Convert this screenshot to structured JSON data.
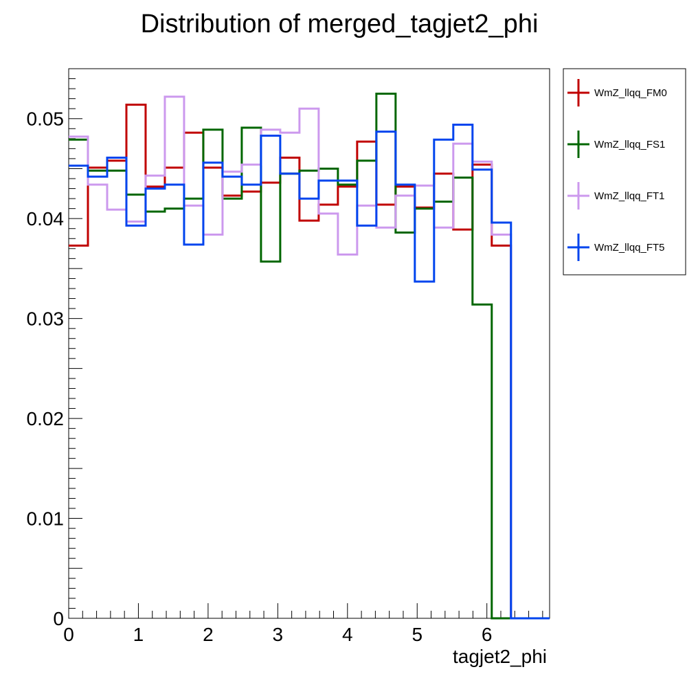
{
  "chart_data": {
    "type": "histogram",
    "title": "Distribution of merged_tagjet2_phi",
    "xlabel": "tagjet2_phi",
    "ylabel": "",
    "xlim": [
      0,
      6.9
    ],
    "ylim": [
      0,
      0.055
    ],
    "x_ticks": [
      "0",
      "1",
      "2",
      "3",
      "4",
      "5",
      "6"
    ],
    "y_ticks": [
      "0",
      "0.01",
      "0.02",
      "0.03",
      "0.04",
      "0.05"
    ],
    "bin_edges": [
      0,
      0.2759,
      0.5518,
      0.8277,
      1.1036,
      1.3795,
      1.6554,
      1.9313,
      2.2072,
      2.4831,
      2.759,
      3.0349,
      3.3108,
      3.5867,
      3.8626,
      4.1385,
      4.4144,
      4.6903,
      4.9662,
      5.2421,
      5.518,
      5.7939,
      6.0698,
      6.3457,
      6.6216,
      6.9
    ],
    "legend_position": "outside-right",
    "series": [
      {
        "name": "WmZ_llqq_FM0",
        "color": "#c00000",
        "values": [
          0.0373,
          0.0451,
          0.0458,
          0.0514,
          0.0432,
          0.0451,
          0.0486,
          0.0451,
          0.0423,
          0.0427,
          0.0436,
          0.0461,
          0.0398,
          0.0414,
          0.0432,
          0.0477,
          0.0414,
          0.0432,
          0.0411,
          0.0445,
          0.0389,
          0.0454,
          0.0373,
          0.0,
          0.0
        ]
      },
      {
        "name": "WmZ_llqq_FS1",
        "color": "#006600",
        "values": [
          0.0479,
          0.0448,
          0.0448,
          0.0424,
          0.0407,
          0.041,
          0.042,
          0.0489,
          0.042,
          0.0491,
          0.0357,
          0.0445,
          0.0448,
          0.045,
          0.0434,
          0.0458,
          0.0525,
          0.0386,
          0.041,
          0.0417,
          0.0441,
          0.0314,
          0.0,
          0.0,
          0.0
        ]
      },
      {
        "name": "WmZ_llqq_FT1",
        "color": "#cc99ee",
        "values": [
          0.0482,
          0.0434,
          0.0409,
          0.0397,
          0.0443,
          0.0522,
          0.0413,
          0.0384,
          0.0447,
          0.0454,
          0.0489,
          0.0486,
          0.051,
          0.0405,
          0.0364,
          0.0413,
          0.0391,
          0.0423,
          0.0433,
          0.0391,
          0.0475,
          0.0457,
          0.0384,
          0.0,
          0.0
        ]
      },
      {
        "name": "WmZ_llqq_FT5",
        "color": "#0044ee",
        "values": [
          0.0453,
          0.0442,
          0.0461,
          0.0393,
          0.043,
          0.0434,
          0.0374,
          0.0456,
          0.0442,
          0.0434,
          0.0483,
          0.0445,
          0.042,
          0.0438,
          0.0438,
          0.0393,
          0.0487,
          0.0434,
          0.0337,
          0.0479,
          0.0494,
          0.0449,
          0.0396,
          0.0,
          0.0
        ]
      }
    ]
  }
}
